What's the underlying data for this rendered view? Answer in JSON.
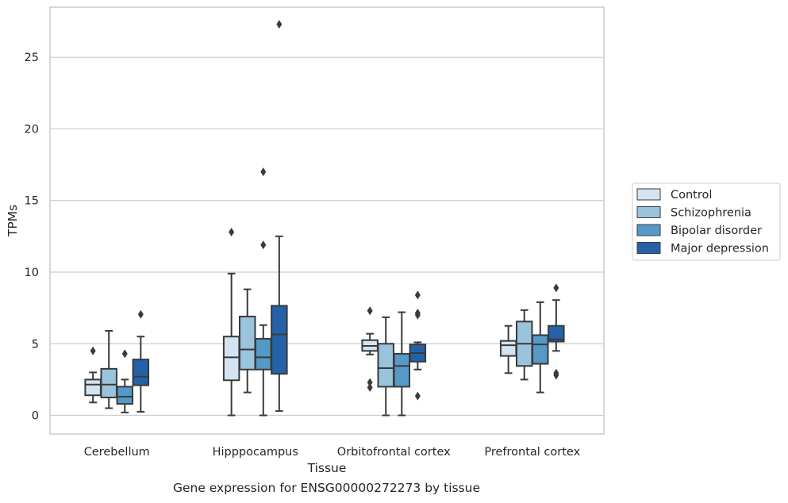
{
  "caption": "Gene expression for ENSG00000272273 by tissue",
  "chart_data": {
    "type": "box",
    "title": "",
    "xlabel": "Tissue",
    "ylabel": "TPMs",
    "ylim": [
      -1.3,
      28.5
    ],
    "yticks": [
      0,
      5,
      10,
      15,
      20,
      25
    ],
    "grid": "horizontal",
    "legend_position": "right",
    "categories": [
      "Cerebellum",
      "Hipppocampus",
      "Orbitofrontal cortex",
      "Prefrontal cortex"
    ],
    "series": [
      {
        "name": "Control",
        "color": "#d3e3f1",
        "boxes": [
          {
            "whislo": 0.9,
            "q1": 1.4,
            "med": 2.15,
            "q3": 2.5,
            "whishi": 3.0,
            "fliers": [
              4.5
            ]
          },
          {
            "whislo": 0.0,
            "q1": 2.45,
            "med": 4.05,
            "q3": 5.5,
            "whishi": 9.9,
            "fliers": [
              12.8
            ]
          },
          {
            "whislo": 4.25,
            "q1": 4.5,
            "med": 4.85,
            "q3": 5.25,
            "whishi": 5.7,
            "fliers": [
              7.3,
              2.3,
              1.95
            ]
          },
          {
            "whislo": 2.95,
            "q1": 4.15,
            "med": 4.9,
            "q3": 5.2,
            "whishi": 6.25,
            "fliers": []
          }
        ]
      },
      {
        "name": "Schizophrenia",
        "color": "#9ac3dd",
        "boxes": [
          {
            "whislo": 0.5,
            "q1": 1.25,
            "med": 2.15,
            "q3": 3.25,
            "whishi": 5.9,
            "fliers": []
          },
          {
            "whislo": 1.6,
            "q1": 3.2,
            "med": 4.6,
            "q3": 6.9,
            "whishi": 8.8,
            "fliers": []
          },
          {
            "whislo": 0.0,
            "q1": 2.0,
            "med": 3.3,
            "q3": 5.0,
            "whishi": 6.85,
            "fliers": []
          },
          {
            "whislo": 2.5,
            "q1": 3.45,
            "med": 5.0,
            "q3": 6.55,
            "whishi": 7.35,
            "fliers": []
          }
        ]
      },
      {
        "name": "Bipolar disorder",
        "color": "#5599c6",
        "boxes": [
          {
            "whislo": 0.2,
            "q1": 0.8,
            "med": 1.3,
            "q3": 2.0,
            "whishi": 2.5,
            "fliers": [
              4.3
            ]
          },
          {
            "whislo": 0.0,
            "q1": 3.2,
            "med": 4.05,
            "q3": 5.35,
            "whishi": 6.3,
            "fliers": [
              17.0,
              11.9
            ]
          },
          {
            "whislo": 0.0,
            "q1": 2.0,
            "med": 3.45,
            "q3": 4.3,
            "whishi": 7.2,
            "fliers": []
          },
          {
            "whislo": 1.6,
            "q1": 3.6,
            "med": 4.95,
            "q3": 5.6,
            "whishi": 7.9,
            "fliers": []
          }
        ]
      },
      {
        "name": "Major depression",
        "color": "#2461a8",
        "boxes": [
          {
            "whislo": 0.25,
            "q1": 2.1,
            "med": 2.7,
            "q3": 3.9,
            "whishi": 5.5,
            "fliers": [
              7.05
            ]
          },
          {
            "whislo": 0.3,
            "q1": 2.9,
            "med": 5.65,
            "q3": 7.65,
            "whishi": 12.5,
            "fliers": [
              27.3
            ]
          },
          {
            "whislo": 3.2,
            "q1": 3.75,
            "med": 4.35,
            "q3": 4.95,
            "whishi": 5.1,
            "fliers": [
              8.4,
              7.15,
              7.0,
              1.35
            ]
          },
          {
            "whislo": 4.5,
            "q1": 5.15,
            "med": 5.3,
            "q3": 6.25,
            "whishi": 8.05,
            "fliers": [
              8.9,
              2.95,
              2.8
            ]
          }
        ]
      }
    ]
  }
}
